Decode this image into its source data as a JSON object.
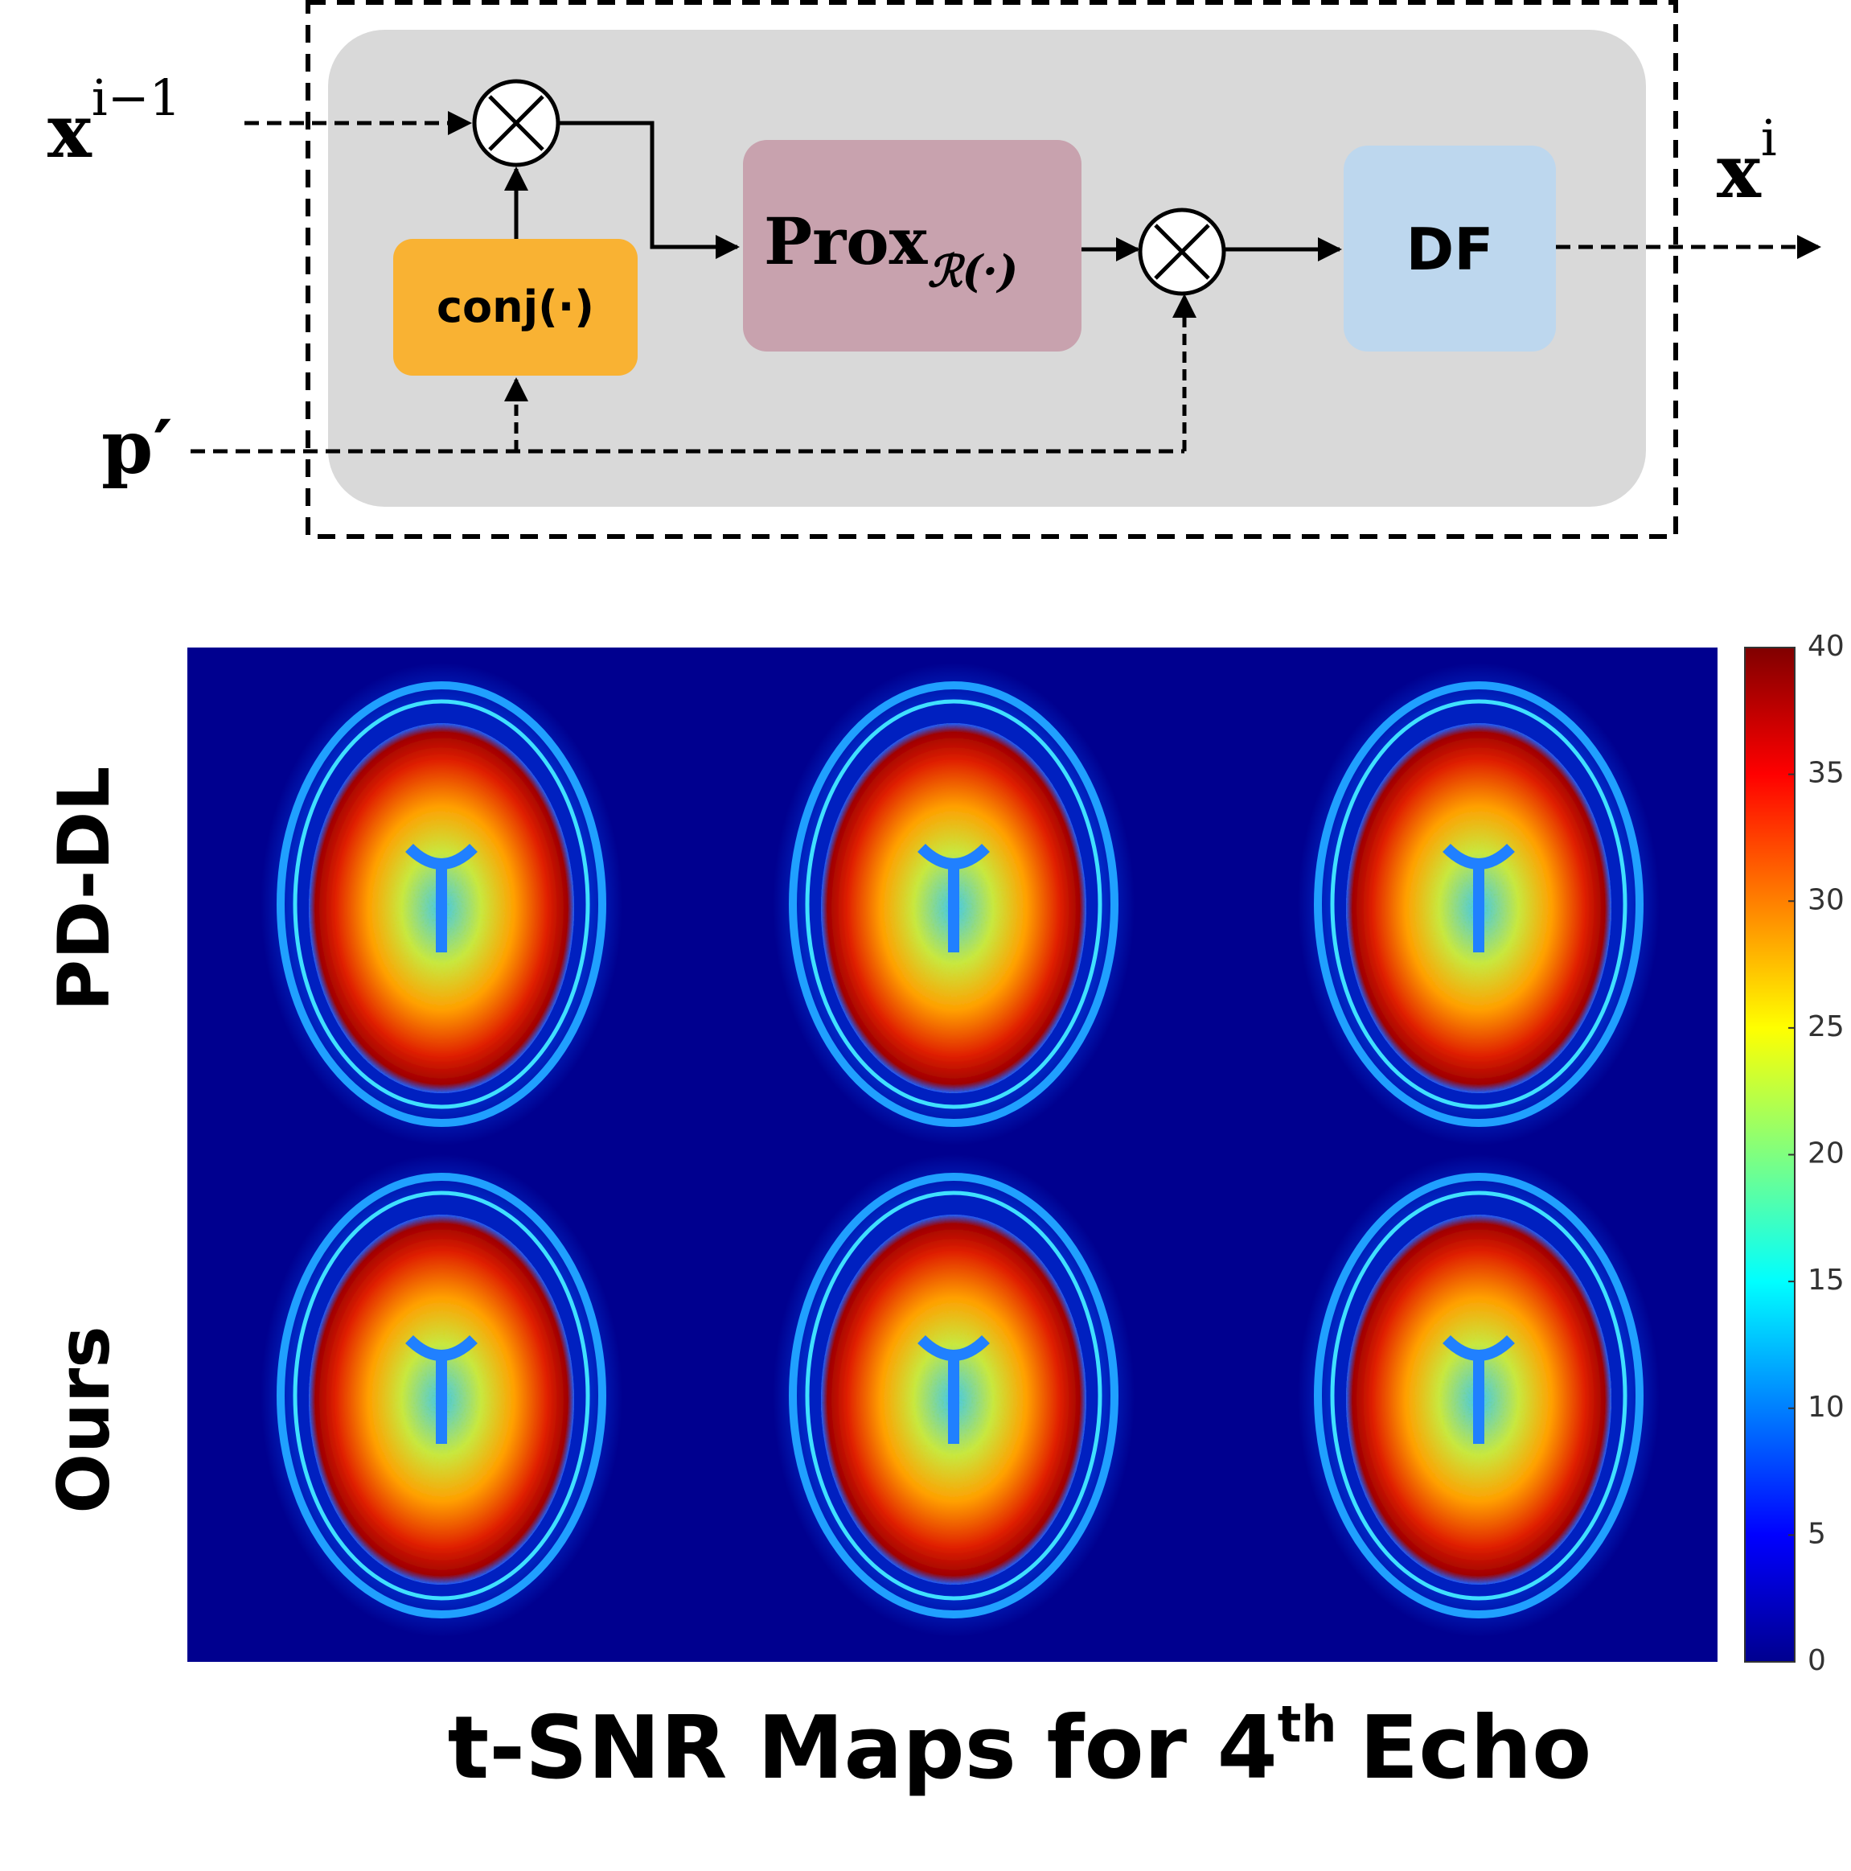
{
  "diagram": {
    "input_label": {
      "base": "x",
      "sup": "i−1"
    },
    "output_label": {
      "base": "x",
      "sup": "i"
    },
    "phase_label": "p′",
    "blocks": {
      "conj": "conj(·)",
      "prox": {
        "base": "Prox",
        "sub": "ℛ(·)"
      },
      "df": "DF"
    }
  },
  "figure": {
    "row_labels": [
      "PD-DL",
      "Ours"
    ],
    "title": {
      "text": "t-SNR Maps for 4",
      "sup": "th",
      "end": "Echo"
    },
    "colorbar": {
      "lim": [
        0,
        40
      ],
      "ticks": [
        0,
        5,
        10,
        15,
        20,
        25,
        30,
        35,
        40
      ]
    }
  }
}
